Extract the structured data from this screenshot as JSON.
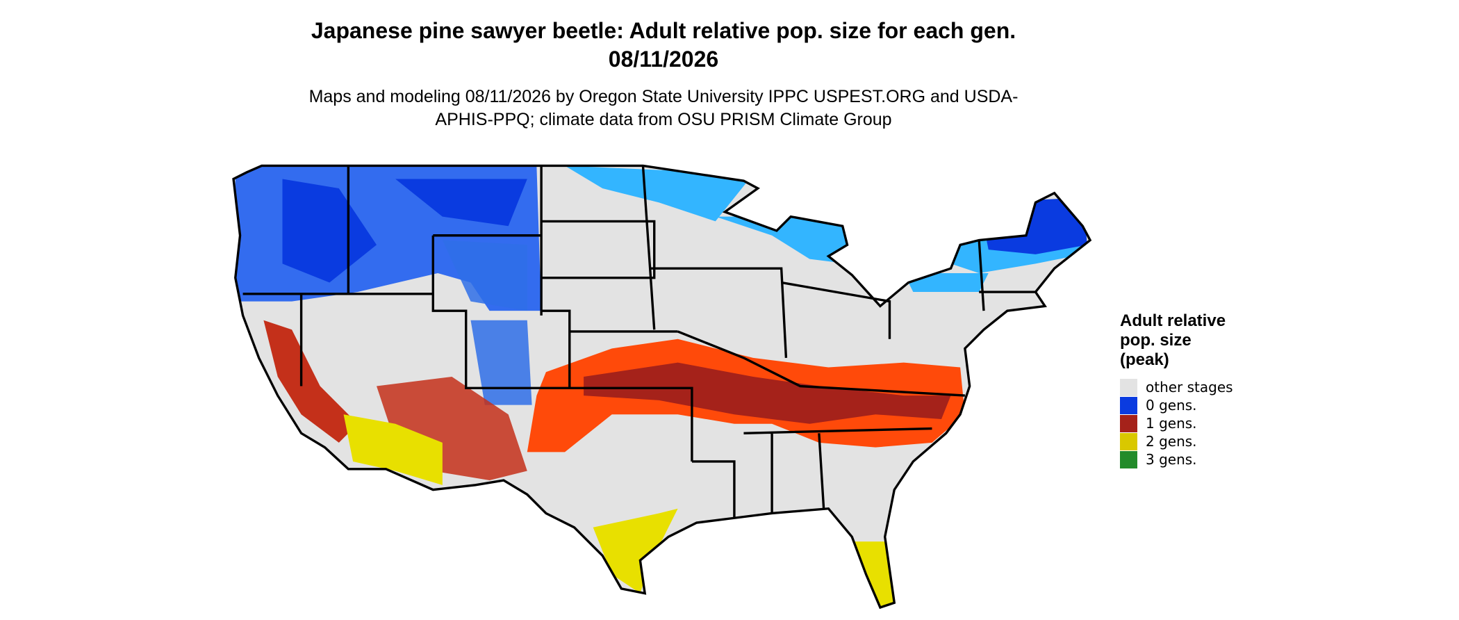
{
  "title": "Japanese pine sawyer beetle: Adult relative pop. size for each gen. 08/11/2026",
  "subtitle": "Maps and modeling 08/11/2026 by Oregon State University IPPC USPEST.ORG and USDA-APHIS-PPQ; climate data from OSU PRISM Climate Group",
  "legend": {
    "title": "Adult relative pop. size (peak)",
    "items": [
      {
        "label": "other stages",
        "color": "#e3e3e3"
      },
      {
        "label": "0 gens.",
        "color": "#0a3be0"
      },
      {
        "label": "1 gens.",
        "color": "#a5221a"
      },
      {
        "label": "2 gens.",
        "color": "#d9c800"
      },
      {
        "label": "3 gens.",
        "color": "#228b2a"
      }
    ]
  }
}
